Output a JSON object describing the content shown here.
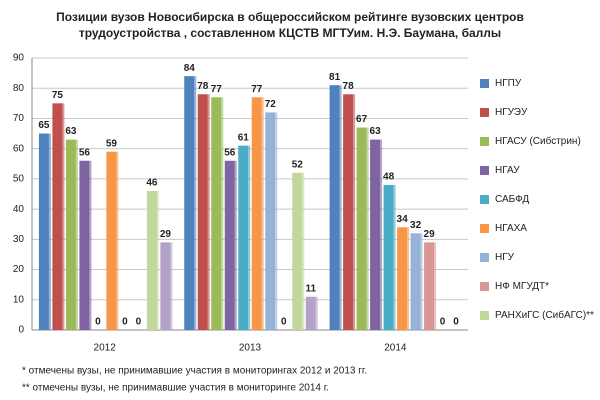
{
  "chart_data": {
    "type": "bar",
    "title": "Позиции вузов Новосибирска в общероссийском рейтинге вузовских центров",
    "subtitle": "трудоустройства , составленном КЦСТВ МГТУим. Н.Э. Баумана,  баллы",
    "categories": [
      "2012",
      "2013",
      "2014"
    ],
    "series": [
      {
        "name": "НГПУ",
        "color": "#4f81bd",
        "values": [
          65,
          84,
          81
        ]
      },
      {
        "name": "НГУЭУ",
        "color": "#c0504d",
        "values": [
          75,
          78,
          78
        ]
      },
      {
        "name": "НГАСУ (Сибстрин)",
        "color": "#9bbb59",
        "values": [
          63,
          77,
          67
        ]
      },
      {
        "name": "НГАУ",
        "color": "#8064a2",
        "values": [
          56,
          56,
          63
        ]
      },
      {
        "name": "САБФД",
        "color": "#4bacc6",
        "values": [
          0,
          61,
          48
        ]
      },
      {
        "name": "НГАХА",
        "color": "#f79646",
        "values": [
          59,
          77,
          34
        ]
      },
      {
        "name": "НГУ",
        "color": "#95b3d7",
        "values": [
          0,
          72,
          32
        ]
      },
      {
        "name": "НФ МГУДТ*",
        "color": "#d99694",
        "values": [
          0,
          0,
          29
        ]
      },
      {
        "name": "РАНХиГС (СибАГС)**",
        "color": "#c3d69b",
        "values": [
          46,
          52,
          0
        ]
      },
      {
        "color": "#b3a2c7",
        "values": [
          29,
          11,
          0
        ]
      }
    ],
    "ylim": [
      0,
      90
    ],
    "yticks": [
      0,
      10,
      20,
      30,
      40,
      50,
      60,
      70,
      80,
      90
    ],
    "grid": true,
    "legend": "right",
    "notes": [
      "*  отмечены вузы, не принимавшие участия в мониторингах 2012 и 2013  гг.",
      "** отмечены вузы, не принимавшие участия в мониторинге 2014 г."
    ]
  }
}
